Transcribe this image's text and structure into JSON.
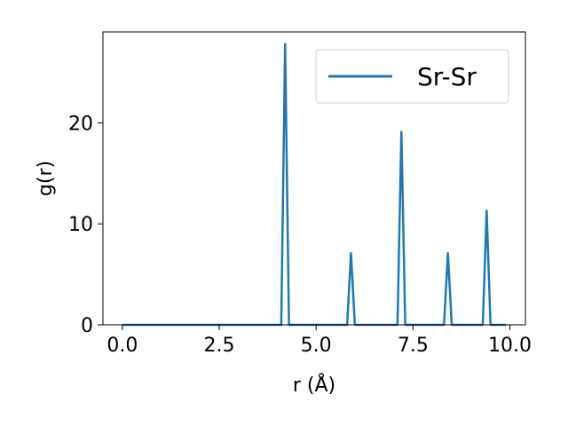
{
  "chart_data": {
    "type": "line",
    "title": "",
    "xlabel": "r (Å)",
    "ylabel": "g(r)",
    "xlim": [
      -0.5,
      10.4
    ],
    "ylim": [
      0,
      29
    ],
    "xticks": [
      0.0,
      2.5,
      5.0,
      7.5,
      10.0
    ],
    "xtick_labels": [
      "0.0",
      "2.5",
      "5.0",
      "7.5",
      "10.0"
    ],
    "yticks": [
      0,
      10,
      20
    ],
    "ytick_labels": [
      "0",
      "10",
      "20"
    ],
    "grid": false,
    "legend_position": "top-right",
    "series": [
      {
        "name": "Sr-Sr",
        "color": "#1f77b4",
        "points": [
          [
            0.0,
            0
          ],
          [
            4.1,
            0
          ],
          [
            4.2,
            27.8
          ],
          [
            4.3,
            0
          ],
          [
            5.8,
            0
          ],
          [
            5.9,
            7.1
          ],
          [
            6.0,
            0
          ],
          [
            7.1,
            0
          ],
          [
            7.2,
            19.1
          ],
          [
            7.3,
            0
          ],
          [
            8.3,
            0
          ],
          [
            8.4,
            7.1
          ],
          [
            8.5,
            0
          ],
          [
            9.3,
            0
          ],
          [
            9.4,
            11.3
          ],
          [
            9.5,
            0
          ],
          [
            9.9,
            0
          ]
        ]
      }
    ]
  }
}
